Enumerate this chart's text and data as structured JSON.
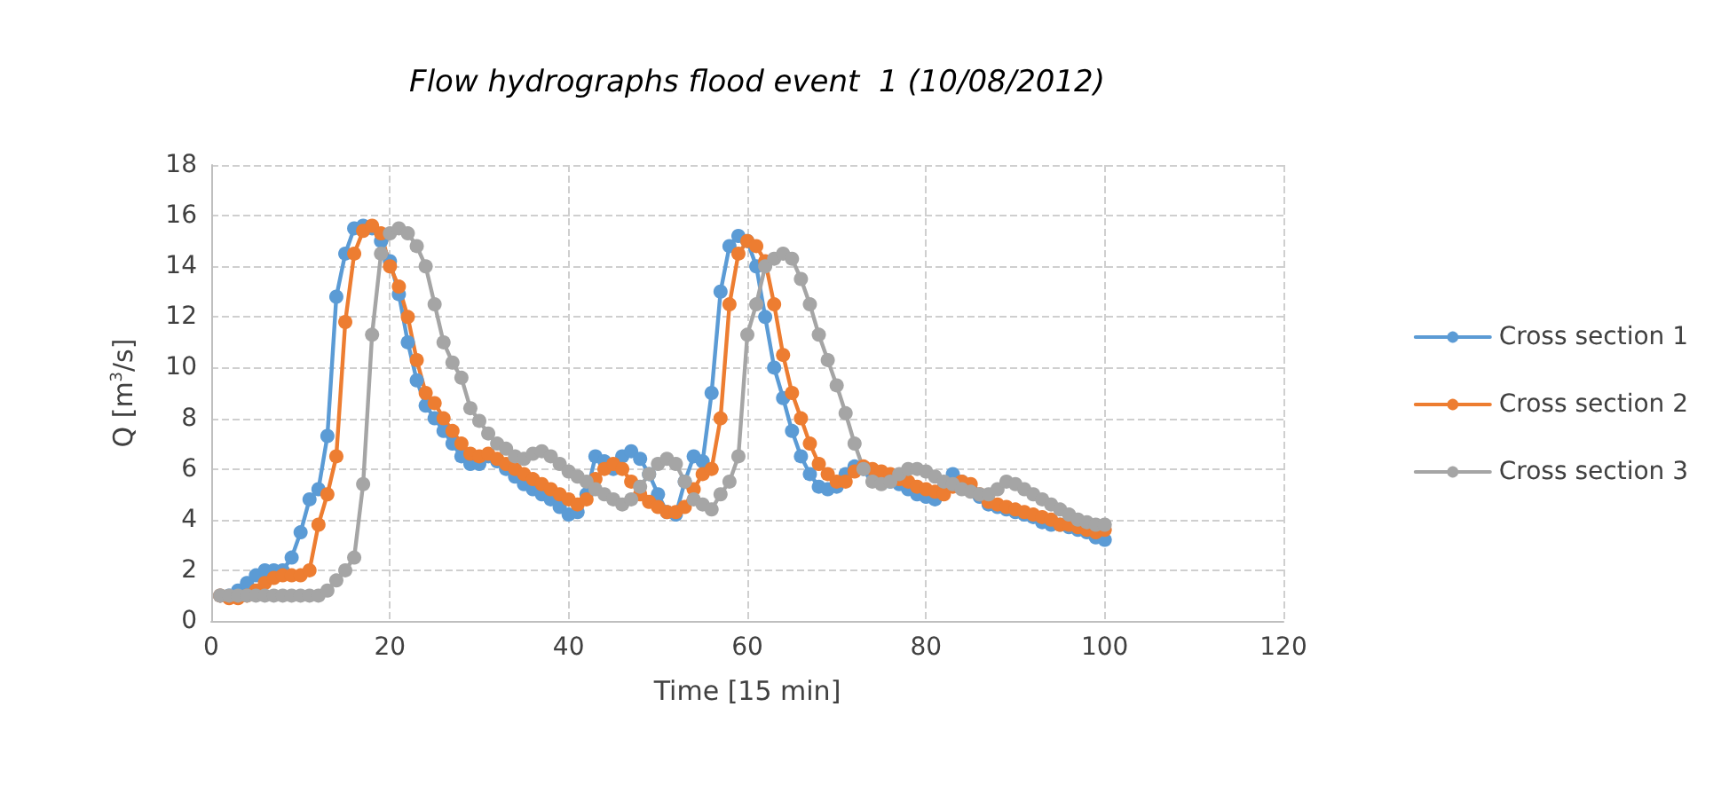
{
  "chart_data": {
    "type": "line",
    "title": "Flow hydrographs flood event  1 (10/08/2012)",
    "xlabel": "Time [15 min]",
    "ylabel": "Q [m$^{3}$/s]",
    "x": [
      1,
      2,
      3,
      4,
      5,
      6,
      7,
      8,
      9,
      10,
      11,
      12,
      13,
      14,
      15,
      16,
      17,
      18,
      19,
      20,
      21,
      22,
      23,
      24,
      25,
      26,
      27,
      28,
      29,
      30,
      31,
      32,
      33,
      34,
      35,
      36,
      37,
      38,
      39,
      40,
      41,
      42,
      43,
      44,
      45,
      46,
      47,
      48,
      49,
      50,
      51,
      52,
      53,
      54,
      55,
      56,
      57,
      58,
      59,
      60,
      61,
      62,
      63,
      64,
      65,
      66,
      67,
      68,
      69,
      70,
      71,
      72,
      73,
      74,
      75,
      76,
      77,
      78,
      79,
      80,
      81,
      82,
      83,
      84,
      85,
      86,
      87,
      88,
      89,
      90,
      91,
      92,
      93,
      94,
      95,
      96,
      97,
      98,
      99,
      100
    ],
    "series": [
      {
        "name": "Cross section 1",
        "color": "#5b9bd5",
        "values": [
          1.0,
          1.0,
          1.2,
          1.5,
          1.8,
          2.0,
          2.0,
          2.0,
          2.5,
          3.5,
          4.8,
          5.2,
          7.3,
          12.8,
          14.5,
          15.5,
          15.6,
          15.5,
          15.0,
          14.2,
          12.9,
          11.0,
          9.5,
          8.5,
          8.0,
          7.5,
          7.0,
          6.5,
          6.2,
          6.2,
          6.5,
          6.3,
          6.0,
          5.7,
          5.4,
          5.2,
          5.0,
          4.8,
          4.5,
          4.2,
          4.3,
          5.0,
          6.5,
          6.3,
          6.0,
          6.5,
          6.7,
          6.4,
          5.8,
          5.0,
          4.3,
          4.2,
          5.5,
          6.5,
          6.3,
          9.0,
          13.0,
          14.8,
          15.2,
          15.0,
          14.0,
          12.0,
          10.0,
          8.8,
          7.5,
          6.5,
          5.8,
          5.3,
          5.2,
          5.3,
          5.8,
          6.1,
          6.0,
          5.8,
          5.7,
          5.5,
          5.4,
          5.2,
          5.0,
          4.9,
          4.8,
          5.3,
          5.8,
          5.5,
          5.2,
          4.9,
          4.6,
          4.5,
          4.4,
          4.3,
          4.2,
          4.1,
          3.9,
          3.8,
          3.8,
          3.7,
          3.6,
          3.5,
          3.3,
          3.2
        ]
      },
      {
        "name": "Cross section 2",
        "color": "#ed7d31",
        "values": [
          1.0,
          0.9,
          0.9,
          1.0,
          1.2,
          1.5,
          1.7,
          1.8,
          1.8,
          1.8,
          2.0,
          3.8,
          5.0,
          6.5,
          11.8,
          14.5,
          15.4,
          15.6,
          15.3,
          14.0,
          13.2,
          12.0,
          10.3,
          9.0,
          8.6,
          8.0,
          7.5,
          7.0,
          6.6,
          6.5,
          6.6,
          6.4,
          6.2,
          6.0,
          5.8,
          5.6,
          5.4,
          5.2,
          5.0,
          4.8,
          4.6,
          4.8,
          5.6,
          6.0,
          6.2,
          6.0,
          5.5,
          5.0,
          4.7,
          4.5,
          4.3,
          4.3,
          4.5,
          5.2,
          5.8,
          6.0,
          8.0,
          12.5,
          14.5,
          15.0,
          14.8,
          14.2,
          12.5,
          10.5,
          9.0,
          8.0,
          7.0,
          6.2,
          5.8,
          5.5,
          5.5,
          5.9,
          6.1,
          6.0,
          5.9,
          5.8,
          5.6,
          5.5,
          5.3,
          5.2,
          5.1,
          5.0,
          5.3,
          5.5,
          5.4,
          5.0,
          4.7,
          4.6,
          4.5,
          4.4,
          4.3,
          4.2,
          4.1,
          4.0,
          3.8,
          3.8,
          3.7,
          3.6,
          3.5,
          3.6
        ]
      },
      {
        "name": "Cross section 3",
        "color": "#a5a5a5",
        "values": [
          1.0,
          1.0,
          1.0,
          1.0,
          1.0,
          1.0,
          1.0,
          1.0,
          1.0,
          1.0,
          1.0,
          1.0,
          1.2,
          1.6,
          2.0,
          2.5,
          5.4,
          11.3,
          14.5,
          15.3,
          15.5,
          15.3,
          14.8,
          14.0,
          12.5,
          11.0,
          10.2,
          9.6,
          8.4,
          7.9,
          7.4,
          7.0,
          6.8,
          6.5,
          6.4,
          6.6,
          6.7,
          6.5,
          6.2,
          5.9,
          5.7,
          5.5,
          5.2,
          5.0,
          4.8,
          4.6,
          4.8,
          5.3,
          5.8,
          6.2,
          6.4,
          6.2,
          5.5,
          4.8,
          4.6,
          4.4,
          5.0,
          5.5,
          6.5,
          11.3,
          12.5,
          14.0,
          14.3,
          14.5,
          14.3,
          13.5,
          12.5,
          11.3,
          10.3,
          9.3,
          8.2,
          7.0,
          6.0,
          5.5,
          5.4,
          5.5,
          5.8,
          6.0,
          6.0,
          5.9,
          5.7,
          5.5,
          5.4,
          5.2,
          5.1,
          5.0,
          5.0,
          5.2,
          5.5,
          5.4,
          5.2,
          5.0,
          4.8,
          4.6,
          4.4,
          4.2,
          4.0,
          3.9,
          3.8,
          3.8
        ]
      }
    ],
    "xlim": [
      0,
      120
    ],
    "xticks": [
      0,
      20,
      40,
      60,
      80,
      100,
      120
    ],
    "ylim": [
      0,
      18
    ],
    "yticks": [
      0,
      2,
      4,
      6,
      8,
      10,
      12,
      14,
      16,
      18
    ],
    "grid": true,
    "legend": "right",
    "marker": "circle",
    "line_style": "solid"
  }
}
